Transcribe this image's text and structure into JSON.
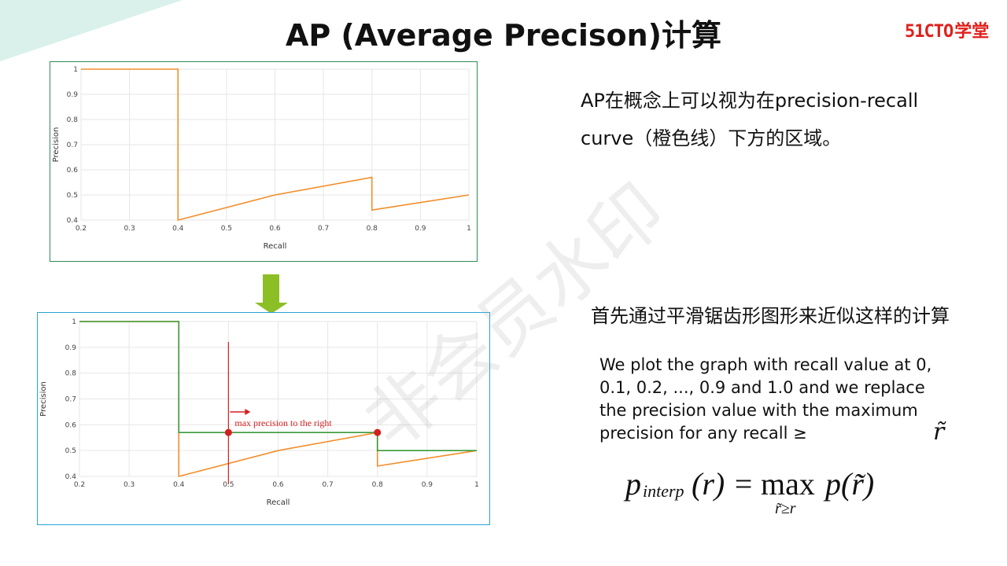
{
  "title": "AP (Average Precison)计算",
  "logo": {
    "number": "51CTO",
    "text": "学堂"
  },
  "description": {
    "line1": "AP在概念上可以视为在precision-recall",
    "line2": "curve（橙色线）下方的区域。",
    "smoothing": "首先通过平滑锯齿形图形来近似这样的计算",
    "english": "We plot the graph with recall  value at 0, 0.1, 0.2, ..., 0.9 and 1.0 and we replace the precision value with the maximum precision for any recall ≥"
  },
  "formula": {
    "p": "p",
    "sub": "interp",
    "lhs_arg": "(r) = ",
    "max": "max",
    "max_sub": "r̃≥r",
    "rhs": "p(r̃)",
    "rtilde": "r̃"
  },
  "watermark": "非会员水印",
  "colors": {
    "orange": "#f28e2b",
    "green": "#3a9a3a",
    "red": "#d42020",
    "grid": "#e6e6e6"
  },
  "chart_data": [
    {
      "type": "line",
      "xlabel": "Recall",
      "ylabel": "Precision",
      "xlim": [
        0.2,
        1
      ],
      "ylim": [
        0.4,
        1
      ],
      "xticks": [
        "0.2",
        "0.3",
        "0.4",
        "0.5",
        "0.6",
        "0.7",
        "0.8",
        "0.9",
        "1"
      ],
      "yticks": [
        "0.4",
        "0.5",
        "0.6",
        "0.7",
        "0.8",
        "0.9",
        "1"
      ],
      "grid": true,
      "series": [
        {
          "color": "#f28e2b",
          "x": [
            0.2,
            0.4,
            0.4,
            0.6,
            0.8,
            0.8,
            1.0
          ],
          "y": [
            1,
            1,
            0.4,
            0.5,
            0.57,
            0.44,
            0.5
          ]
        }
      ]
    },
    {
      "type": "line",
      "xlabel": "Recall",
      "ylabel": "Precision",
      "xlim": [
        0.2,
        1
      ],
      "ylim": [
        0.4,
        1
      ],
      "xticks": [
        "0.2",
        "0.3",
        "0.4",
        "0.5",
        "0.6",
        "0.7",
        "0.8",
        "0.9",
        "1"
      ],
      "yticks": [
        "0.4",
        "0.5",
        "0.6",
        "0.7",
        "0.8",
        "0.9",
        "1"
      ],
      "grid": true,
      "series": [
        {
          "color": "#f28e2b",
          "x": [
            0.2,
            0.4,
            0.4,
            0.6,
            0.8,
            0.8,
            1.0
          ],
          "y": [
            1,
            1,
            0.4,
            0.5,
            0.57,
            0.44,
            0.5
          ]
        },
        {
          "color": "#3a9a3a",
          "x": [
            0.2,
            0.4,
            0.4,
            0.8,
            0.8,
            1.0
          ],
          "y": [
            1,
            1,
            0.57,
            0.57,
            0.5,
            0.5
          ]
        }
      ],
      "points": [
        {
          "x": 0.5,
          "y": 0.57
        },
        {
          "x": 0.8,
          "y": 0.57
        }
      ],
      "vline_x": 0.5,
      "annotation": "max precision to the right"
    }
  ]
}
